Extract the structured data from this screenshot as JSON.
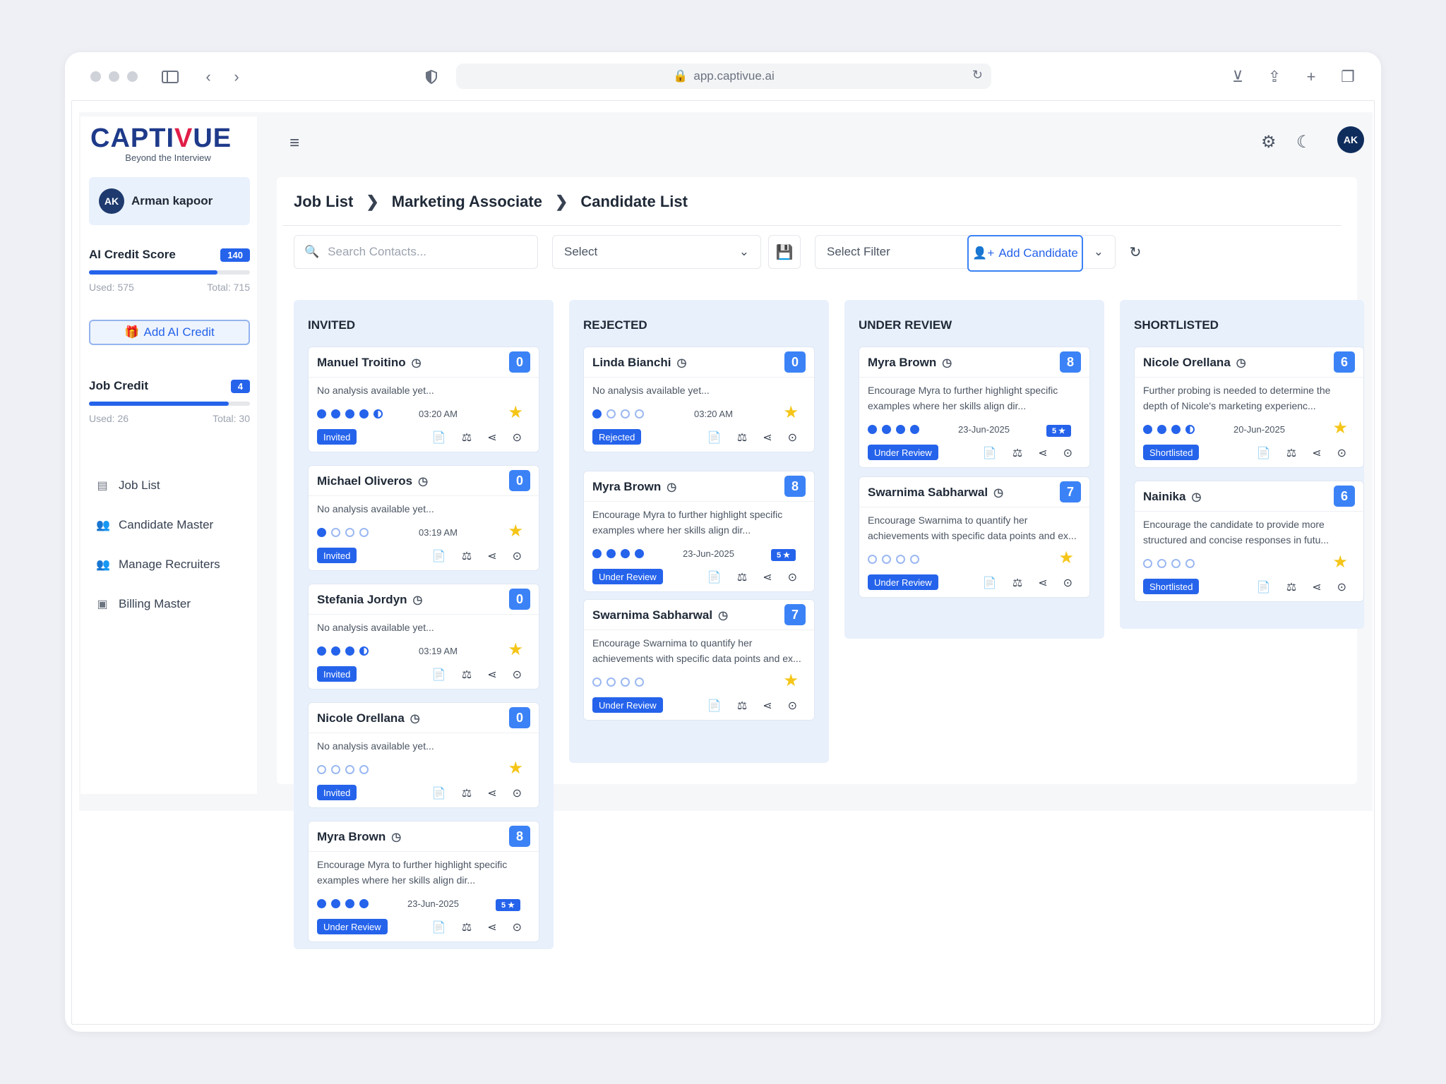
{
  "browser": {
    "url": "app.captivue.ai"
  },
  "app": {
    "logo": {
      "brand_pre": "CAPTI",
      "brand_v": "V",
      "brand_post": "UE",
      "tagline": "Beyond the Interview"
    },
    "user": {
      "initials": "AK",
      "name": "Arman kapoor"
    },
    "ai_credit": {
      "label": "AI Credit Score",
      "badge": "140",
      "used": "Used: 575",
      "total": "Total: 715",
      "fraction": 0.8
    },
    "add_ai_credit": "Add AI Credit",
    "job_credit": {
      "label": "Job Credit",
      "badge": "4",
      "used": "Used: 26",
      "total": "Total: 30",
      "fraction": 0.87
    },
    "nav": [
      {
        "label": "Job List",
        "icon": "list-icon"
      },
      {
        "label": "Candidate Master",
        "icon": "users-icon"
      },
      {
        "label": "Manage Recruiters",
        "icon": "users-icon"
      },
      {
        "label": "Billing Master",
        "icon": "billing-icon"
      }
    ],
    "topbar": {
      "avatar": "AK"
    },
    "breadcrumb": [
      "Job List",
      "Marketing Associate",
      "Candidate List"
    ],
    "filters": {
      "search_placeholder": "Search Contacts...",
      "select": "Select",
      "select_filter": "Select Filter",
      "add_candidate": "Add Candidate"
    },
    "columns": [
      {
        "title": "INVITED",
        "cards": [
          {
            "name": "Manuel Troitino",
            "count": "0",
            "text": "No analysis available yet...",
            "dots": "ffffh",
            "time": "03:20 AM",
            "status": "Invited"
          },
          {
            "name": "Michael Oliveros",
            "count": "0",
            "text": "No analysis available yet...",
            "dots": "feee",
            "time": "03:19 AM",
            "status": "Invited"
          },
          {
            "name": "Stefania Jordyn",
            "count": "0",
            "text": "No analysis available yet...",
            "dots": "fffh",
            "time": "03:19 AM",
            "status": "Invited"
          },
          {
            "name": "Nicole Orellana",
            "count": "0",
            "text": "No analysis available yet...",
            "dots": "eeee",
            "time": "",
            "status": "Invited"
          },
          {
            "name": "Myra Brown",
            "count": "8",
            "text": "Encourage Myra to further highlight specific examples where her skills align dir...",
            "dots": "ffff",
            "time": "23-Jun-2025",
            "status": "Under Review",
            "rating": "5 ★"
          }
        ]
      },
      {
        "title": "REJECTED",
        "cards": [
          {
            "name": "Linda Bianchi",
            "count": "0",
            "text": "No analysis available yet...",
            "dots": "feee",
            "time": "03:20 AM",
            "status": "Rejected"
          },
          {
            "name": "Myra Brown",
            "count": "8",
            "text": "Encourage Myra to further highlight specific examples where her skills align dir...",
            "dots": "ffff",
            "time": "23-Jun-2025",
            "status": "Under Review",
            "rating": "5 ★"
          },
          {
            "name": "Swarnima Sabharwal",
            "count": "7",
            "text": "Encourage Swarnima to quantify her achievements with specific data points and ex...",
            "dots": "eeee",
            "time": "",
            "status": "Under Review"
          }
        ]
      },
      {
        "title": "UNDER REVIEW",
        "cards": [
          {
            "name": "Myra Brown",
            "count": "8",
            "text": "Encourage Myra to further highlight specific examples where her skills align dir...",
            "dots": "ffff",
            "time": "23-Jun-2025",
            "status": "Under Review",
            "rating": "5 ★"
          },
          {
            "name": "Swarnima Sabharwal",
            "count": "7",
            "text": "Encourage Swarnima to quantify her achievements with specific data points and ex...",
            "dots": "eeee",
            "time": "",
            "status": "Under Review"
          }
        ]
      },
      {
        "title": "SHORTLISTED",
        "cards": [
          {
            "name": "Nicole Orellana",
            "count": "6",
            "text": "Further probing is needed to determine the depth of Nicole's marketing experienc...",
            "dots": "fffh",
            "time": "20-Jun-2025",
            "status": "Shortlisted"
          },
          {
            "name": "Nainika",
            "count": "6",
            "text": "Encourage the candidate to provide more structured and concise responses in futu...",
            "dots": "eeee",
            "time": "",
            "status": "Shortlisted"
          }
        ]
      }
    ]
  },
  "colors": {
    "primary": "#2563eb",
    "column_bg": "#e8f0fc",
    "brand": "#1e3a8a",
    "accent": "#e11d48",
    "star": "#f5c518"
  }
}
